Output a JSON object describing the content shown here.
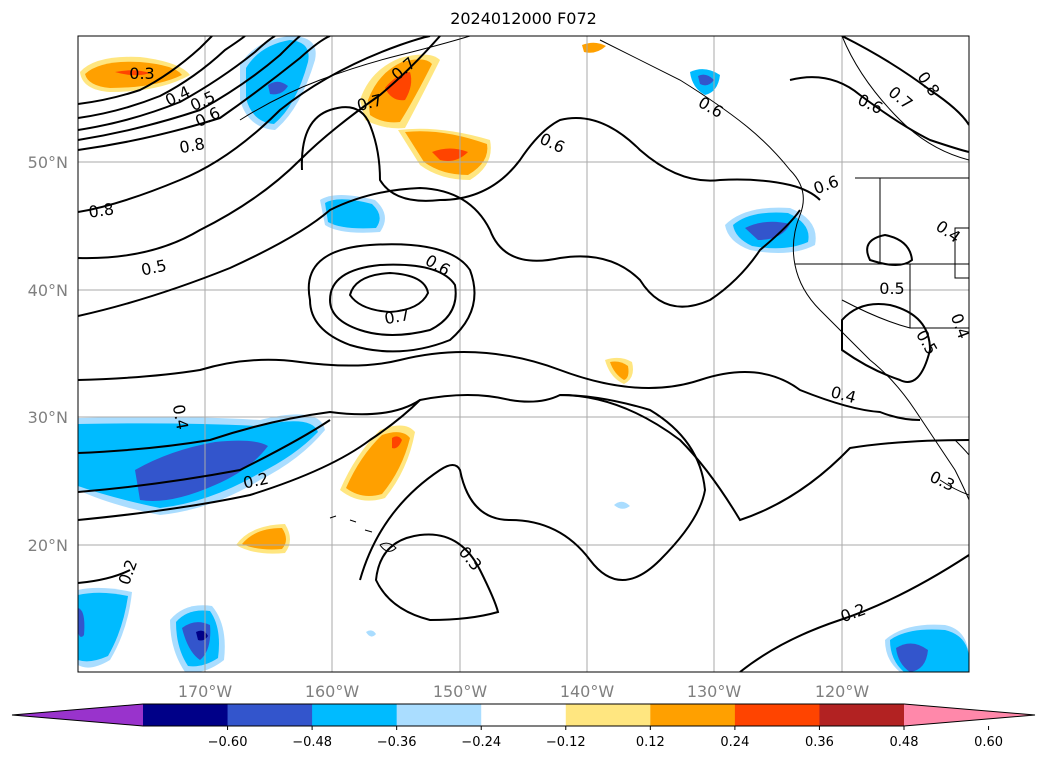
{
  "title": "2024012000 F072",
  "map": {
    "lat_labels": [
      "50°N",
      "40°N",
      "30°N",
      "20°N"
    ],
    "lon_labels": [
      "170°W",
      "160°W",
      "150°W",
      "140°W",
      "130°W",
      "120°W"
    ],
    "gridlines": true,
    "coastline": true
  },
  "colorbar": {
    "orientation": "horizontal",
    "extend": "both",
    "ticks": [
      "−0.60",
      "−0.48",
      "−0.36",
      "−0.24",
      "−0.12",
      "0.12",
      "0.24",
      "0.36",
      "0.48",
      "0.60"
    ],
    "colors": [
      "#9933cc",
      "#000088",
      "#3355cc",
      "#00bbff",
      "#aaddff",
      "#ffffff",
      "#ffe680",
      "#ffa000",
      "#ff4400",
      "#b22222",
      "#ff88aa"
    ]
  },
  "contour_labels": [
    "0.3",
    "0.4",
    "0.5",
    "0.6",
    "0.7",
    "0.8",
    "0.7",
    "0.6",
    "0.8",
    "0.5",
    "0.6",
    "0.7",
    "0.4",
    "0.2",
    "0.3",
    "0.2",
    "0.2",
    "0.6",
    "0.7",
    "0.8",
    "0.6",
    "0.4",
    "0.5",
    "0.5",
    "0.4",
    "0.4",
    "0.3",
    "0.6"
  ]
}
